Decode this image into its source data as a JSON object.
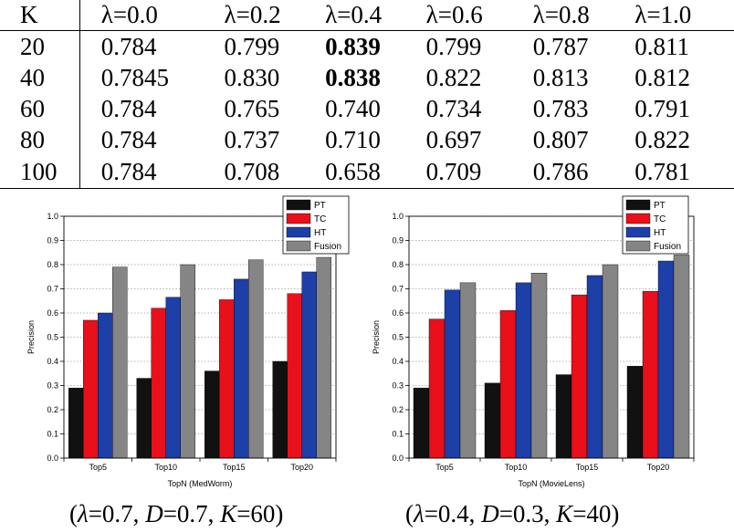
{
  "table": {
    "header": [
      "K",
      "λ=0.0",
      "λ=0.2",
      "λ=0.4",
      "λ=0.6",
      "λ=0.8",
      "λ=1.0"
    ],
    "rows": [
      [
        "20",
        "0.784",
        "0.799",
        "0.839",
        "0.799",
        "0.787",
        "0.811"
      ],
      [
        "40",
        "0.7845",
        "0.830",
        "0.838",
        "0.822",
        "0.813",
        "0.812"
      ],
      [
        "60",
        "0.784",
        "0.765",
        "0.740",
        "0.734",
        "0.783",
        "0.791"
      ],
      [
        "80",
        "0.784",
        "0.737",
        "0.710",
        "0.697",
        "0.807",
        "0.822"
      ],
      [
        "100",
        "0.784",
        "0.708",
        "0.658",
        "0.709",
        "0.786",
        "0.781"
      ]
    ],
    "bold_cells": [
      [
        0,
        3
      ],
      [
        1,
        3
      ]
    ]
  },
  "chart_data": [
    {
      "type": "bar",
      "categories": [
        "Top5",
        "Top10",
        "Top15",
        "Top20"
      ],
      "series": [
        {
          "name": "PT",
          "color": "#111111",
          "values": [
            0.29,
            0.33,
            0.36,
            0.4
          ]
        },
        {
          "name": "TC",
          "color": "#e8101a",
          "values": [
            0.57,
            0.62,
            0.655,
            0.68
          ]
        },
        {
          "name": "HT",
          "color": "#1c3fa8",
          "values": [
            0.6,
            0.665,
            0.74,
            0.77
          ]
        },
        {
          "name": "Fusion",
          "color": "#858585",
          "values": [
            0.79,
            0.8,
            0.82,
            0.83
          ]
        }
      ],
      "title": "",
      "xlabel": "TopN   (MedWorm)",
      "ylabel": "Precision",
      "ylim": [
        0.0,
        1.0
      ],
      "yticks": [
        "0.0",
        "0.1",
        "0.2",
        "0.3",
        "0.4",
        "0.5",
        "0.6",
        "0.7",
        "0.8",
        "0.9",
        "1.0"
      ],
      "grid": true,
      "legend": "top-right"
    },
    {
      "type": "bar",
      "categories": [
        "Top5",
        "Top10",
        "Top15",
        "Top20"
      ],
      "series": [
        {
          "name": "PT",
          "color": "#111111",
          "values": [
            0.29,
            0.31,
            0.345,
            0.38
          ]
        },
        {
          "name": "TC",
          "color": "#e8101a",
          "values": [
            0.575,
            0.61,
            0.675,
            0.69
          ]
        },
        {
          "name": "HT",
          "color": "#1c3fa8",
          "values": [
            0.695,
            0.725,
            0.755,
            0.815
          ]
        },
        {
          "name": "Fusion",
          "color": "#858585",
          "values": [
            0.725,
            0.765,
            0.8,
            0.84
          ]
        }
      ],
      "title": "",
      "xlabel": "TopN   (MovieLens)",
      "ylabel": "Precision",
      "ylim": [
        0.0,
        1.0
      ],
      "yticks": [
        "0.0",
        "0.1",
        "0.2",
        "0.3",
        "0.4",
        "0.5",
        "0.6",
        "0.7",
        "0.8",
        "0.9",
        "1.0"
      ],
      "grid": true,
      "legend": "top-right"
    }
  ],
  "captions": {
    "left": {
      "open": "(",
      "lam": "λ",
      "p1": "=0.7, ",
      "d": "D",
      "p2": "=0.7, ",
      "k": "K",
      "p3": "=60)"
    },
    "right": {
      "open": "(",
      "lam": "λ",
      "p1": "=0.4, ",
      "d": "D",
      "p2": "=0.3, ",
      "k": "K",
      "p3": "=40)"
    }
  }
}
